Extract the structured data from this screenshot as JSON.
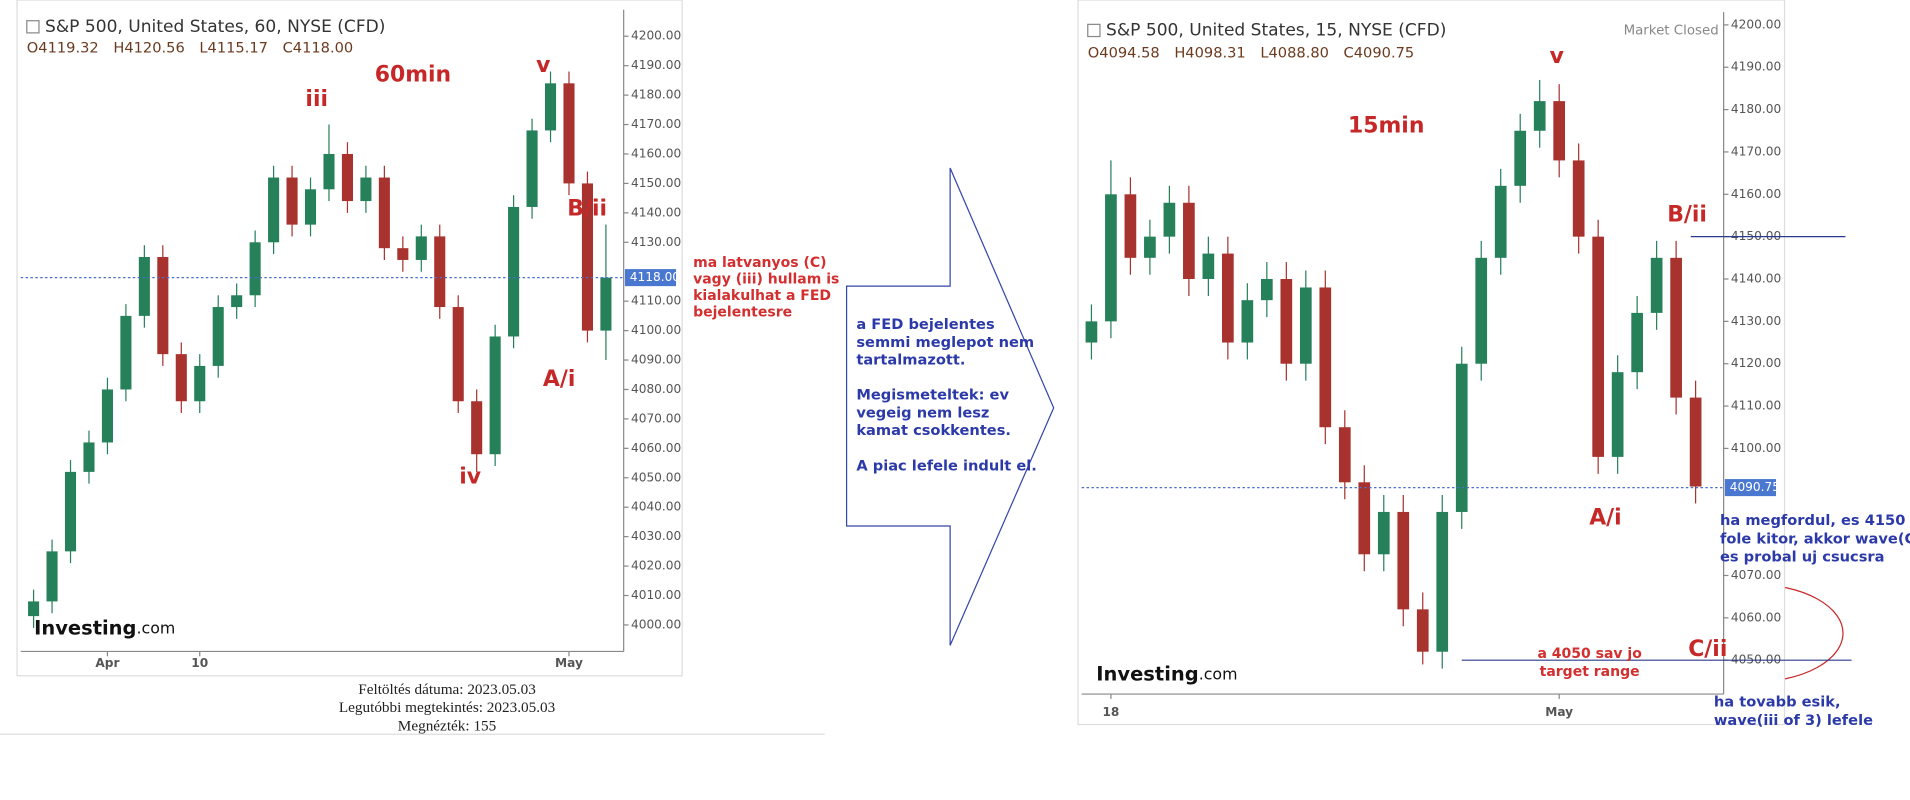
{
  "chart_data": [
    {
      "type": "candlestick",
      "title": "S&P 500, United States, 60, NYSE (CFD)",
      "ohlc_labels": [
        "O4119.32",
        "H4120.56",
        "L4115.17",
        "C4118.00"
      ],
      "timeframe_label": "60min",
      "open": [
        4003,
        4008,
        4025,
        4052,
        4062,
        4080,
        4105,
        4125,
        4092,
        4076,
        4088,
        4108,
        4112,
        4130,
        4152,
        4136,
        4148,
        4160,
        4144,
        4152,
        4128,
        4124,
        4132,
        4108,
        4076,
        4058,
        4098,
        4142,
        4168,
        4184,
        4150,
        4100
      ],
      "high": [
        4012,
        4029,
        4056,
        4066,
        4084,
        4109,
        4129,
        4129,
        4096,
        4092,
        4112,
        4116,
        4134,
        4156,
        4156,
        4152,
        4170,
        4164,
        4156,
        4156,
        4132,
        4136,
        4136,
        4112,
        4080,
        4102,
        4146,
        4172,
        4188,
        4188,
        4154,
        4136
      ],
      "low": [
        3999,
        4004,
        4021,
        4048,
        4058,
        4076,
        4101,
        4088,
        4072,
        4072,
        4084,
        4104,
        4108,
        4126,
        4132,
        4132,
        4144,
        4140,
        4140,
        4124,
        4120,
        4120,
        4104,
        4072,
        4052,
        4054,
        4094,
        4138,
        4164,
        4146,
        4096,
        4090
      ],
      "close": [
        4008,
        4025,
        4052,
        4062,
        4080,
        4105,
        4125,
        4092,
        4076,
        4088,
        4108,
        4112,
        4130,
        4152,
        4136,
        4148,
        4160,
        4144,
        4152,
        4128,
        4124,
        4132,
        4108,
        4076,
        4058,
        4098,
        4142,
        4168,
        4184,
        4150,
        4100,
        4118
      ],
      "up_color": "#26805a",
      "down_color": "#a8322d",
      "ylim": [
        3991,
        4209
      ],
      "yticks": [
        {
          "value": 4000,
          "label": "4000.00"
        },
        {
          "value": 4010,
          "label": "4010.00"
        },
        {
          "value": 4020,
          "label": "4020.00"
        },
        {
          "value": 4030,
          "label": "4030.00"
        },
        {
          "value": 4040,
          "label": "4040.00"
        },
        {
          "value": 4050,
          "label": "4050.00"
        },
        {
          "value": 4060,
          "label": "4060.00"
        },
        {
          "value": 4070,
          "label": "4070.00"
        },
        {
          "value": 4080,
          "label": "4080.00"
        },
        {
          "value": 4090,
          "label": "4090.00"
        },
        {
          "value": 4100,
          "label": "4100.00"
        },
        {
          "value": 4110,
          "label": "4110.00"
        },
        {
          "value": 4130,
          "label": "4130.00"
        },
        {
          "value": 4140,
          "label": "4140.00"
        },
        {
          "value": 4150,
          "label": "4150.00"
        },
        {
          "value": 4160,
          "label": "4160.00"
        },
        {
          "value": 4170,
          "label": "4170.00"
        },
        {
          "value": 4180,
          "label": "4180.00"
        },
        {
          "value": 4190,
          "label": "4190.00"
        },
        {
          "value": 4200,
          "label": "4200.00"
        }
      ],
      "xticks": [
        {
          "value": 4,
          "label": "Apr"
        },
        {
          "value": 9,
          "label": "10"
        },
        {
          "value": 29,
          "label": "May"
        }
      ],
      "last_price": {
        "value": 4118,
        "label": "4118.00"
      },
      "annotations": [
        "iii",
        "v",
        "iv",
        "A/i",
        "B/ii"
      ],
      "logo": [
        "Investing",
        ".com"
      ]
    },
    {
      "type": "candlestick",
      "title": "S&P 500, United States, 15, NYSE (CFD)",
      "ohlc_labels": [
        "O4094.58",
        "H4098.31",
        "L4088.80",
        "C4090.75"
      ],
      "status": "Market Closed",
      "timeframe_label": "15min",
      "open": [
        4125,
        4130,
        4160,
        4145,
        4150,
        4158,
        4140,
        4146,
        4125,
        4135,
        4140,
        4120,
        4138,
        4105,
        4092,
        4075,
        4085,
        4062,
        4052,
        4085,
        4120,
        4145,
        4162,
        4175,
        4182,
        4168,
        4150,
        4098,
        4118,
        4132,
        4145,
        4112
      ],
      "high": [
        4134,
        4168,
        4164,
        4154,
        4162,
        4162,
        4150,
        4150,
        4139,
        4144,
        4144,
        4142,
        4142,
        4109,
        4096,
        4089,
        4089,
        4066,
        4089,
        4124,
        4149,
        4166,
        4179,
        4187,
        4186,
        4172,
        4154,
        4122,
        4136,
        4149,
        4149,
        4116
      ],
      "low": [
        4121,
        4126,
        4141,
        4141,
        4146,
        4136,
        4136,
        4121,
        4121,
        4131,
        4116,
        4116,
        4101,
        4088,
        4071,
        4071,
        4058,
        4049,
        4048,
        4081,
        4116,
        4141,
        4158,
        4171,
        4164,
        4146,
        4094,
        4094,
        4114,
        4128,
        4108,
        4087
      ],
      "close": [
        4130,
        4160,
        4145,
        4150,
        4158,
        4140,
        4146,
        4125,
        4135,
        4140,
        4120,
        4138,
        4105,
        4092,
        4075,
        4085,
        4062,
        4052,
        4085,
        4120,
        4145,
        4162,
        4175,
        4182,
        4168,
        4150,
        4098,
        4118,
        4132,
        4145,
        4112,
        4091
      ],
      "up_color": "#26805a",
      "down_color": "#a8322d",
      "ylim": [
        4042,
        4203
      ],
      "yticks": [
        {
          "value": 4050,
          "label": "4050.00"
        },
        {
          "value": 4060,
          "label": "4060.00"
        },
        {
          "value": 4070,
          "label": "4070.00"
        },
        {
          "value": 4100,
          "label": "4100.00"
        },
        {
          "value": 4110,
          "label": "4110.00"
        },
        {
          "value": 4120,
          "label": "4120.00"
        },
        {
          "value": 4130,
          "label": "4130.00"
        },
        {
          "value": 4140,
          "label": "4140.00"
        },
        {
          "value": 4150,
          "label": "4150.00"
        },
        {
          "value": 4160,
          "label": "4160.00"
        },
        {
          "value": 4170,
          "label": "4170.00"
        },
        {
          "value": 4180,
          "label": "4180.00"
        },
        {
          "value": 4190,
          "label": "4190.00"
        },
        {
          "value": 4200,
          "label": "4200.00"
        }
      ],
      "xticks": [
        {
          "value": 1,
          "label": "18"
        },
        {
          "value": 24,
          "label": "May"
        }
      ],
      "last_price": {
        "value": 4090.75,
        "label": "4090.75"
      },
      "levels": [
        4150,
        4050
      ],
      "annotations": [
        "v",
        "B/ii",
        "A/i",
        "C/ii"
      ],
      "target_note": [
        "a 4050 sav jo",
        "target range"
      ],
      "up_note": [
        "ha megfordul, es 4150",
        "fole kitor, akkor wave(C)",
        "es probal uj csucsra"
      ],
      "down_note": [
        "ha tovabb esik,",
        "wave(iii of 3) lefele"
      ],
      "logo": [
        "Investing",
        ".com"
      ]
    }
  ],
  "chart_1_note": [
    "ma latvanyos (C)",
    "vagy (iii) hullam is",
    "kialakulhat a FED",
    "bejelentesre"
  ],
  "arrow_text": [
    [
      "a FED bejelentes",
      "semmi meglepot nem",
      "tartalmazott."
    ],
    [
      "Megismeteltek: ev",
      "vegeig  nem lesz",
      "kamat csokkentes."
    ],
    [
      "A piac lefele indult el."
    ]
  ],
  "footer": [
    "Feltöltés dátuma: 2023.05.03",
    "Legutóbbi megtekintés: 2023.05.03",
    "Megnézték: 155"
  ]
}
